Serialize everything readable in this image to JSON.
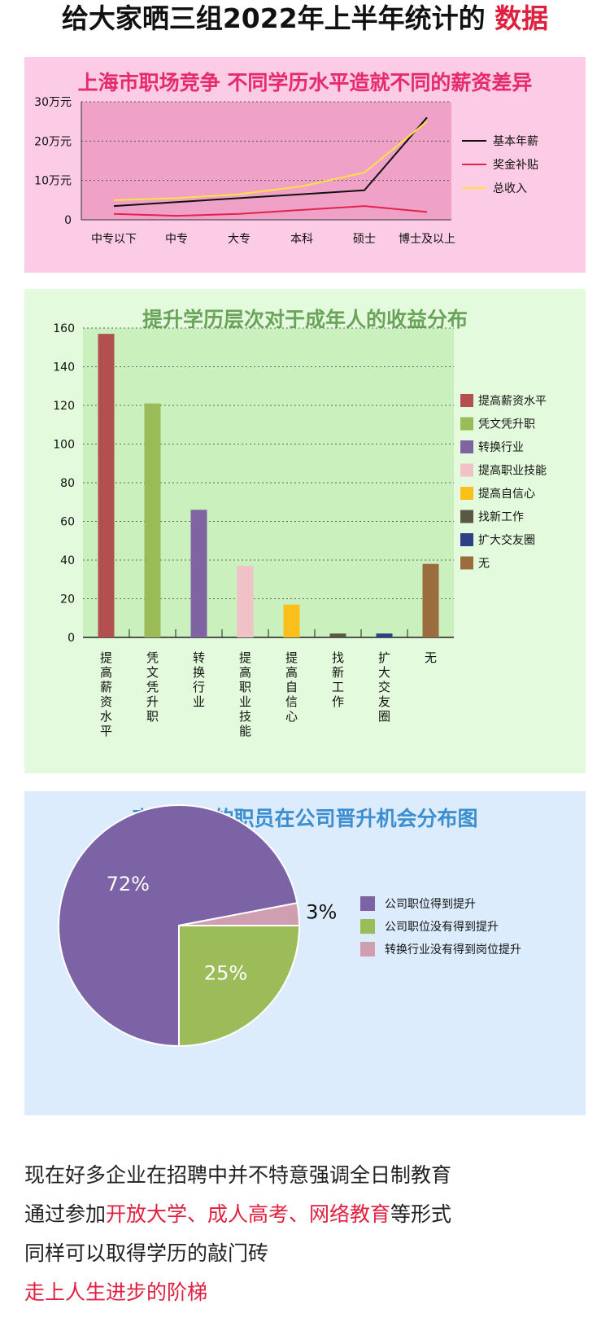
{
  "headline": {
    "main": "给大家晒三组2022年上半年统计的",
    "accent": "数据"
  },
  "colors": {
    "accent_red": "#e0203f",
    "panel1_bg": "#fccbe5",
    "panel2_bg": "#e3fbdc",
    "panel3_bg": "#dcecfd"
  },
  "chart_data": [
    {
      "type": "line",
      "title": "上海市职场竞争 不同学历水平造就不同的薪资差异",
      "categories": [
        "中专以下",
        "中专",
        "大专",
        "本科",
        "硕士",
        "博士及以上"
      ],
      "y_ticks": [
        "30万元",
        "20万元",
        "10万元",
        "0"
      ],
      "ylim": [
        0,
        30
      ],
      "grid": true,
      "legend_position": "right",
      "series": [
        {
          "name": "基本年薪",
          "color": "#111111",
          "values": [
            3.5,
            4.5,
            5.5,
            6.5,
            7.5,
            26
          ]
        },
        {
          "name": "奖金补贴",
          "color": "#e2234a",
          "values": [
            1.5,
            1.0,
            1.5,
            2.5,
            3.5,
            2.0
          ]
        },
        {
          "name": "总收入",
          "color": "#ffe040",
          "values": [
            5.0,
            5.5,
            6.5,
            8.5,
            12.0,
            25
          ]
        }
      ]
    },
    {
      "type": "bar",
      "title": "提升学历层次对于成年人的收益分布",
      "categories": [
        "提高薪资水平",
        "凭文凭升职",
        "转换行业",
        "提高职业技能",
        "提高自信心",
        "找新工作",
        "扩大交友圈",
        "无"
      ],
      "values": [
        157,
        121,
        66,
        37,
        17,
        2,
        2,
        38
      ],
      "colors": [
        "#b3504f",
        "#9bbb59",
        "#7f63a2",
        "#f0c1c7",
        "#fbbf1b",
        "#5a5844",
        "#2e3f87",
        "#9b6c3d"
      ],
      "y_ticks": [
        "160",
        "140",
        "120",
        "100",
        "80",
        "60",
        "40",
        "20",
        "0"
      ],
      "ylim": [
        0,
        160
      ],
      "grid": true,
      "legend_position": "right"
    },
    {
      "type": "pie",
      "title": "高等学历的职员在公司晋升机会分布图",
      "slices": [
        {
          "label": "公司职位得到提升",
          "value": 72,
          "display": "72%",
          "color": "#7c63a5"
        },
        {
          "label": "公司职位没有得到提升",
          "value": 25,
          "display": "25%",
          "color": "#9cbb59"
        },
        {
          "label": "转换行业没有得到岗位提升",
          "value": 3,
          "display": "3%",
          "color": "#cf9eb0"
        }
      ],
      "legend_position": "right"
    }
  ],
  "closing": {
    "line1": "现在好多企业在招聘中并不特意强调全日制教育",
    "line2_pre": "通过参加",
    "line2_red": "开放大学、成人高考、网络教育",
    "line2_post": "等形式",
    "line3": "同样可以取得学历的敲门砖",
    "line4_red": "走上人生进步的阶梯"
  }
}
